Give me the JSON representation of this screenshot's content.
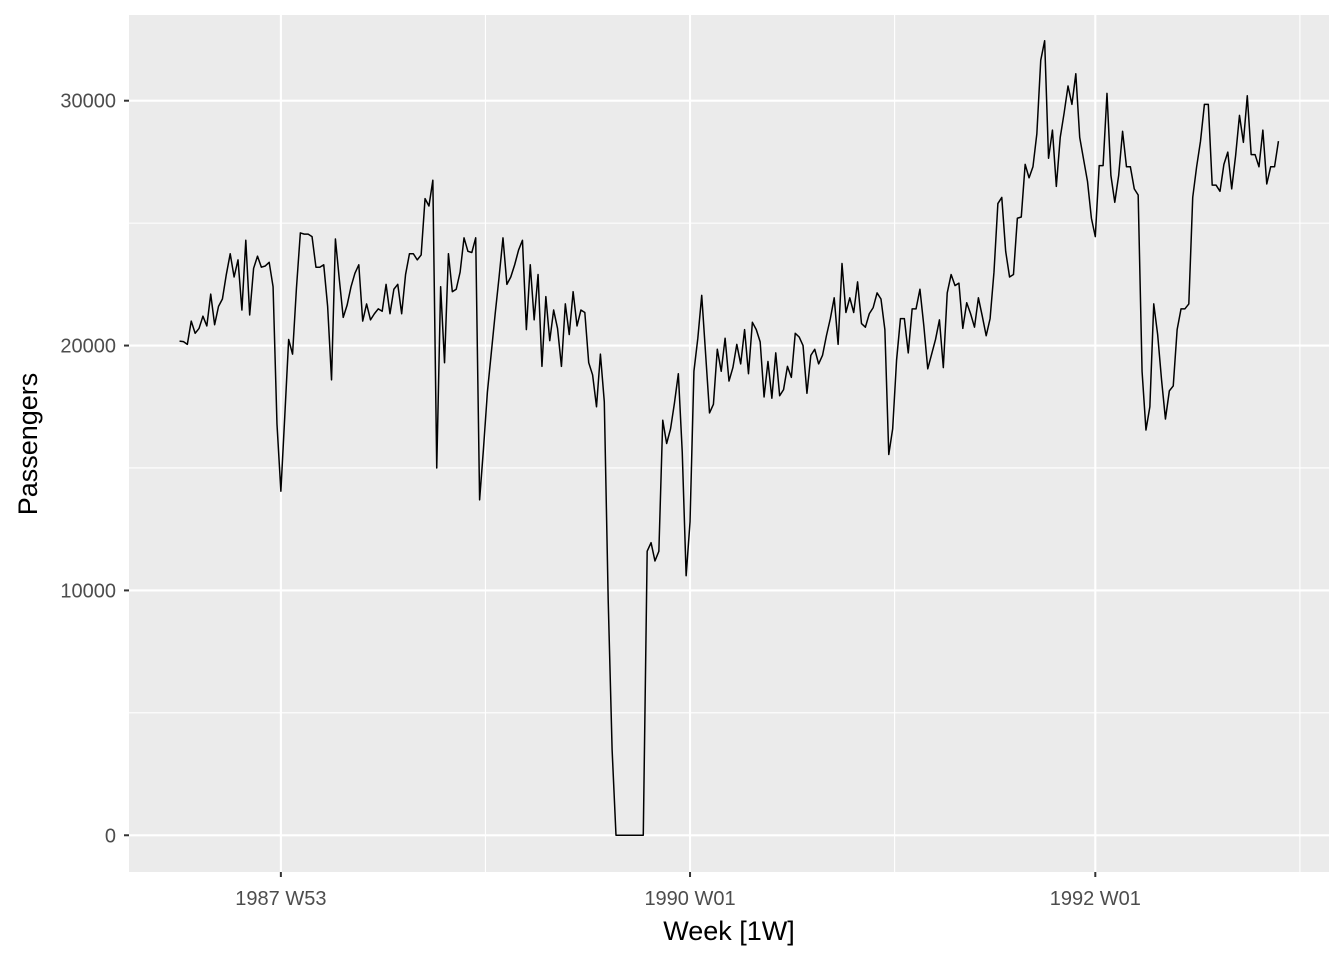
{
  "chart_data": {
    "type": "line",
    "xlabel": "Week [1W]",
    "ylabel": "Passengers",
    "x_start_week": "1987 W27",
    "x_ticks": [
      {
        "label": "1987 W53",
        "week_index": 26
      },
      {
        "label": "1990 W01",
        "week_index": 131
      },
      {
        "label": "1992 W01",
        "week_index": 235
      }
    ],
    "y_ticks": [
      0,
      10000,
      20000,
      30000
    ],
    "ylim": [
      -1500,
      33500
    ],
    "grid": true,
    "background": "#ebebeb",
    "grid_color": "#ffffff",
    "line_color": "#000000",
    "series": [
      {
        "values": [
          20180,
          20160,
          20050,
          21000,
          20500,
          20700,
          21200,
          20800,
          22100,
          20850,
          21600,
          21900,
          22900,
          23750,
          22800,
          23500,
          21450,
          24300,
          21250,
          23150,
          23650,
          23200,
          23250,
          23400,
          22400,
          16800,
          14050,
          17100,
          20250,
          19650,
          22350,
          24600,
          24550,
          24550,
          24450,
          23200,
          23200,
          23300,
          21600,
          18600,
          24350,
          22700,
          21150,
          21650,
          22400,
          22950,
          23300,
          21000,
          21700,
          21050,
          21300,
          21500,
          21400,
          22500,
          21300,
          22300,
          22500,
          21300,
          22900,
          23750,
          23750,
          23500,
          23700,
          26000,
          25700,
          26750,
          15000,
          22400,
          19300,
          23750,
          22200,
          22300,
          23000,
          24400,
          23850,
          23800,
          24400,
          13700,
          15800,
          18100,
          19700,
          21300,
          22800,
          24400,
          22500,
          22800,
          23300,
          23900,
          24300,
          20650,
          23300,
          21050,
          22900,
          19150,
          22000,
          20200,
          21450,
          20700,
          19150,
          21700,
          20450,
          22200,
          20800,
          21450,
          21350,
          19300,
          18800,
          17500,
          19650,
          17700,
          9600,
          3500,
          0,
          0,
          0,
          0,
          0,
          0,
          0,
          0,
          11600,
          11950,
          11200,
          11600,
          16950,
          16000,
          16600,
          17650,
          18850,
          15650,
          10600,
          12800,
          18950,
          20300,
          22050,
          19650,
          17250,
          17600,
          19850,
          18950,
          20300,
          18550,
          19100,
          20050,
          19250,
          20650,
          18850,
          20950,
          20650,
          20150,
          17900,
          19350,
          17850,
          19700,
          17950,
          18200,
          19150,
          18700,
          20500,
          20350,
          20000,
          18050,
          19600,
          19850,
          19250,
          19600,
          20400,
          21100,
          21950,
          20050,
          23350,
          21350,
          21950,
          21350,
          22600,
          20900,
          20750,
          21300,
          21550,
          22150,
          21900,
          20650,
          15550,
          16600,
          19400,
          21100,
          21100,
          19700,
          21500,
          21500,
          22300,
          20800,
          19050,
          19650,
          20250,
          21050,
          19100,
          22150,
          22900,
          22450,
          22550,
          20700,
          21750,
          21300,
          20750,
          21950,
          21200,
          20400,
          21100,
          23000,
          25800,
          26050,
          23850,
          22800,
          22900,
          25200,
          25250,
          27400,
          26850,
          27300,
          28650,
          31650,
          32450,
          27650,
          28800,
          26500,
          28500,
          29500,
          30600,
          29850,
          31100,
          28500,
          27600,
          26700,
          25200,
          24450,
          27350,
          27350,
          30300,
          26950,
          25850,
          26950,
          28750,
          27300,
          27300,
          26400,
          26150,
          18950,
          16550,
          17500,
          21700,
          20450,
          18600,
          17000,
          18150,
          18350,
          20650,
          21500,
          21500,
          21700,
          26050,
          27300,
          28350,
          29850,
          29850,
          26550,
          26550,
          26300,
          27400,
          27900,
          26400,
          27750,
          29400,
          28300,
          30200,
          27800,
          27800,
          27300,
          28800,
          26600,
          27300,
          27300,
          28350
        ]
      }
    ]
  }
}
